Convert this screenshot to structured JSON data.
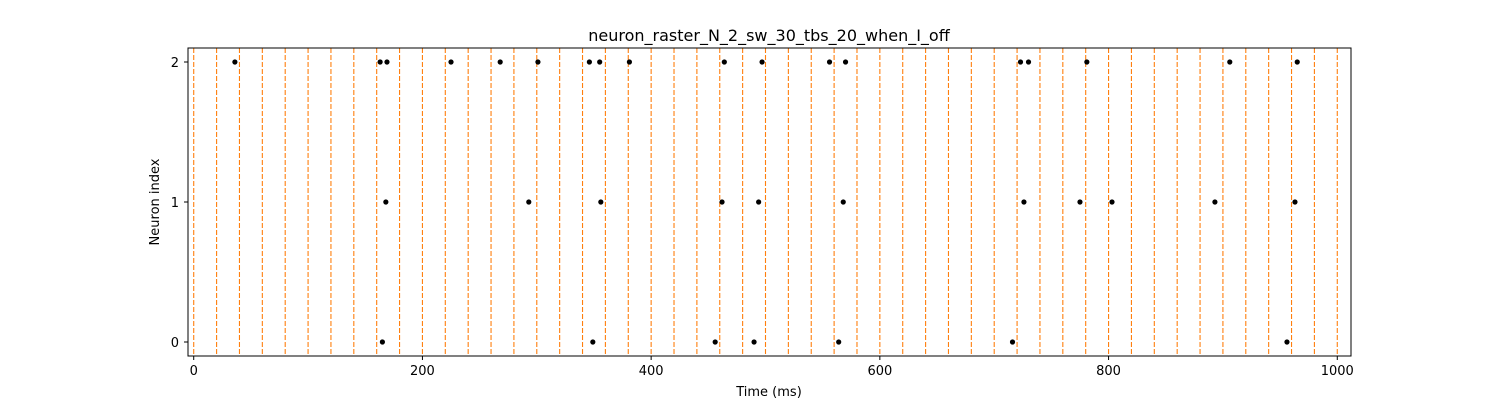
{
  "chart_data": {
    "type": "scatter",
    "title": "neuron_raster_N_2_sw_30_tbs_20_when_I_off",
    "xlabel": "Time (ms)",
    "ylabel": "Neuron index",
    "xlim": [
      -5,
      1012
    ],
    "ylim": [
      -0.1,
      2.1
    ],
    "xticks": [
      0,
      200,
      400,
      600,
      800,
      1000
    ],
    "yticks": [
      0,
      1,
      2
    ],
    "marker_color": "#000000",
    "vline_color": "#ff7f0e",
    "vlines": {
      "start": 0,
      "end": 1000,
      "step": 20,
      "style": "dashed"
    },
    "series": [
      {
        "name": "neuron 2",
        "y": 2,
        "x": [
          36,
          163,
          169,
          225,
          268,
          301,
          346,
          355,
          381,
          464,
          497,
          556,
          570,
          723,
          730,
          781,
          906,
          965
        ]
      },
      {
        "name": "neuron 1",
        "y": 1,
        "x": [
          168,
          293,
          356,
          462,
          494,
          568,
          726,
          775,
          803,
          893,
          963
        ]
      },
      {
        "name": "neuron 0",
        "y": 0,
        "x": [
          165,
          349,
          456,
          490,
          564,
          716,
          956
        ]
      }
    ]
  }
}
